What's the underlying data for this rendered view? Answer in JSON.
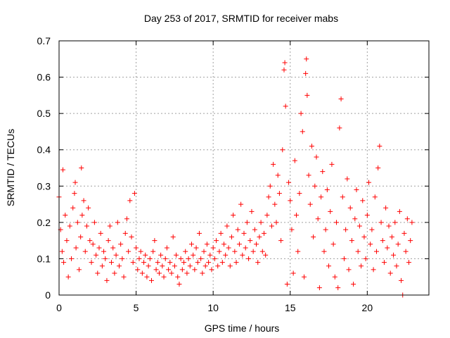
{
  "chart_data": {
    "type": "scatter",
    "title": "Day 253 of 2017, SRMTID for receiver mabs",
    "xlabel": "GPS time / hours",
    "ylabel": "SRMTID / TECUs",
    "xlim": [
      0,
      24
    ],
    "ylim": [
      0,
      0.7
    ],
    "x_ticks": [
      0,
      5,
      10,
      15,
      20
    ],
    "y_ticks": [
      0,
      0.1,
      0.2,
      0.3,
      0.4,
      0.5,
      0.6,
      0.7
    ],
    "x_tick_labels": [
      "0",
      "5",
      "10",
      "15",
      "20"
    ],
    "y_tick_labels": [
      "0",
      "0.1",
      "0.2",
      "0.3",
      "0.4",
      "0.5",
      "0.6",
      "0.7"
    ],
    "grid": true,
    "marker": "+",
    "color": "#ff0000",
    "series": [
      {
        "name": "SRMTID",
        "points": [
          [
            0.0,
            0.27
          ],
          [
            0.1,
            0.18
          ],
          [
            0.2,
            0.12
          ],
          [
            0.25,
            0.345
          ],
          [
            0.3,
            0.09
          ],
          [
            0.4,
            0.22
          ],
          [
            0.5,
            0.15
          ],
          [
            0.6,
            0.05
          ],
          [
            0.7,
            0.19
          ],
          [
            0.8,
            0.1
          ],
          [
            0.9,
            0.24
          ],
          [
            1.0,
            0.28
          ],
          [
            1.05,
            0.31
          ],
          [
            1.1,
            0.13
          ],
          [
            1.2,
            0.2
          ],
          [
            1.3,
            0.07
          ],
          [
            1.4,
            0.16
          ],
          [
            1.45,
            0.35
          ],
          [
            1.5,
            0.22
          ],
          [
            1.6,
            0.26
          ],
          [
            1.7,
            0.12
          ],
          [
            1.8,
            0.19
          ],
          [
            1.9,
            0.24
          ],
          [
            2.0,
            0.15
          ],
          [
            2.1,
            0.09
          ],
          [
            2.2,
            0.14
          ],
          [
            2.3,
            0.2
          ],
          [
            2.4,
            0.11
          ],
          [
            2.5,
            0.06
          ],
          [
            2.6,
            0.13
          ],
          [
            2.7,
            0.17
          ],
          [
            2.8,
            0.08
          ],
          [
            2.9,
            0.12
          ],
          [
            3.0,
            0.1
          ],
          [
            3.1,
            0.04
          ],
          [
            3.2,
            0.15
          ],
          [
            3.3,
            0.19
          ],
          [
            3.4,
            0.09
          ],
          [
            3.5,
            0.13
          ],
          [
            3.6,
            0.06
          ],
          [
            3.7,
            0.11
          ],
          [
            3.8,
            0.2
          ],
          [
            3.9,
            0.08
          ],
          [
            4.0,
            0.14
          ],
          [
            4.1,
            0.1
          ],
          [
            4.2,
            0.05
          ],
          [
            4.3,
            0.17
          ],
          [
            4.4,
            0.21
          ],
          [
            4.5,
            0.12
          ],
          [
            4.6,
            0.26
          ],
          [
            4.7,
            0.16
          ],
          [
            4.8,
            0.09
          ],
          [
            4.9,
            0.28
          ],
          [
            5.0,
            0.13
          ],
          [
            5.1,
            0.07
          ],
          [
            5.2,
            0.1
          ],
          [
            5.3,
            0.12
          ],
          [
            5.4,
            0.06
          ],
          [
            5.5,
            0.09
          ],
          [
            5.6,
            0.11
          ],
          [
            5.7,
            0.05
          ],
          [
            5.8,
            0.08
          ],
          [
            5.9,
            0.1
          ],
          [
            6.0,
            0.04
          ],
          [
            6.1,
            0.12
          ],
          [
            6.2,
            0.15
          ],
          [
            6.3,
            0.07
          ],
          [
            6.4,
            0.09
          ],
          [
            6.5,
            0.06
          ],
          [
            6.6,
            0.11
          ],
          [
            6.7,
            0.08
          ],
          [
            6.8,
            0.05
          ],
          [
            6.9,
            0.1
          ],
          [
            7.0,
            0.13
          ],
          [
            7.1,
            0.07
          ],
          [
            7.2,
            0.09
          ],
          [
            7.3,
            0.06
          ],
          [
            7.4,
            0.16
          ],
          [
            7.5,
            0.08
          ],
          [
            7.6,
            0.11
          ],
          [
            7.7,
            0.05
          ],
          [
            7.8,
            0.03
          ],
          [
            7.9,
            0.1
          ],
          [
            8.0,
            0.07
          ],
          [
            8.1,
            0.09
          ],
          [
            8.2,
            0.12
          ],
          [
            8.3,
            0.06
          ],
          [
            8.4,
            0.1
          ],
          [
            8.5,
            0.08
          ],
          [
            8.6,
            0.14
          ],
          [
            8.7,
            0.11
          ],
          [
            8.8,
            0.07
          ],
          [
            8.9,
            0.13
          ],
          [
            9.0,
            0.09
          ],
          [
            9.1,
            0.17
          ],
          [
            9.2,
            0.1
          ],
          [
            9.3,
            0.06
          ],
          [
            9.4,
            0.12
          ],
          [
            9.5,
            0.08
          ],
          [
            9.6,
            0.14
          ],
          [
            9.7,
            0.09
          ],
          [
            9.8,
            0.11
          ],
          [
            9.9,
            0.07
          ],
          [
            10.0,
            0.13
          ],
          [
            10.1,
            0.1
          ],
          [
            10.2,
            0.15
          ],
          [
            10.3,
            0.08
          ],
          [
            10.4,
            0.12
          ],
          [
            10.5,
            0.17
          ],
          [
            10.6,
            0.09
          ],
          [
            10.7,
            0.14
          ],
          [
            10.8,
            0.11
          ],
          [
            10.9,
            0.19
          ],
          [
            11.0,
            0.13
          ],
          [
            11.1,
            0.08
          ],
          [
            11.2,
            0.16
          ],
          [
            11.3,
            0.22
          ],
          [
            11.4,
            0.12
          ],
          [
            11.5,
            0.09
          ],
          [
            11.6,
            0.18
          ],
          [
            11.7,
            0.14
          ],
          [
            11.8,
            0.25
          ],
          [
            11.9,
            0.11
          ],
          [
            12.0,
            0.17
          ],
          [
            12.1,
            0.13
          ],
          [
            12.2,
            0.2
          ],
          [
            12.3,
            0.1
          ],
          [
            12.4,
            0.15
          ],
          [
            12.5,
            0.23
          ],
          [
            12.6,
            0.12
          ],
          [
            12.7,
            0.18
          ],
          [
            12.8,
            0.14
          ],
          [
            12.9,
            0.09
          ],
          [
            13.0,
            0.16
          ],
          [
            13.1,
            0.2
          ],
          [
            13.2,
            0.12
          ],
          [
            13.3,
            0.17
          ],
          [
            13.4,
            0.11
          ],
          [
            13.5,
            0.22
          ],
          [
            13.6,
            0.27
          ],
          [
            13.7,
            0.3
          ],
          [
            13.8,
            0.19
          ],
          [
            13.9,
            0.36
          ],
          [
            14.0,
            0.25
          ],
          [
            14.1,
            0.2
          ],
          [
            14.2,
            0.33
          ],
          [
            14.3,
            0.28
          ],
          [
            14.4,
            0.15
          ],
          [
            14.5,
            0.4
          ],
          [
            14.6,
            0.62
          ],
          [
            14.65,
            0.64
          ],
          [
            14.7,
            0.52
          ],
          [
            14.8,
            0.03
          ],
          [
            14.9,
            0.31
          ],
          [
            15.0,
            0.26
          ],
          [
            15.1,
            0.18
          ],
          [
            15.2,
            0.06
          ],
          [
            15.3,
            0.37
          ],
          [
            15.4,
            0.22
          ],
          [
            15.5,
            0.12
          ],
          [
            15.6,
            0.28
          ],
          [
            15.7,
            0.5
          ],
          [
            15.8,
            0.45
          ],
          [
            15.9,
            0.05
          ],
          [
            16.0,
            0.61
          ],
          [
            16.05,
            0.65
          ],
          [
            16.1,
            0.55
          ],
          [
            16.2,
            0.33
          ],
          [
            16.3,
            0.25
          ],
          [
            16.4,
            0.41
          ],
          [
            16.5,
            0.16
          ],
          [
            16.6,
            0.3
          ],
          [
            16.7,
            0.38
          ],
          [
            16.8,
            0.21
          ],
          [
            16.9,
            0.02
          ],
          [
            17.0,
            0.27
          ],
          [
            17.1,
            0.34
          ],
          [
            17.2,
            0.12
          ],
          [
            17.3,
            0.18
          ],
          [
            17.4,
            0.29
          ],
          [
            17.5,
            0.08
          ],
          [
            17.6,
            0.23
          ],
          [
            17.7,
            0.36
          ],
          [
            17.8,
            0.14
          ],
          [
            17.9,
            0.05
          ],
          [
            18.0,
            0.2
          ],
          [
            18.1,
            0.02
          ],
          [
            18.2,
            0.46
          ],
          [
            18.3,
            0.54
          ],
          [
            18.4,
            0.27
          ],
          [
            18.5,
            0.1
          ],
          [
            18.6,
            0.18
          ],
          [
            18.7,
            0.32
          ],
          [
            18.8,
            0.07
          ],
          [
            18.9,
            0.24
          ],
          [
            19.0,
            0.15
          ],
          [
            19.1,
            0.03
          ],
          [
            19.2,
            0.21
          ],
          [
            19.3,
            0.29
          ],
          [
            19.4,
            0.12
          ],
          [
            19.5,
            0.19
          ],
          [
            19.6,
            0.08
          ],
          [
            19.7,
            0.26
          ],
          [
            19.8,
            0.16
          ],
          [
            19.9,
            0.1
          ],
          [
            20.0,
            0.22
          ],
          [
            20.1,
            0.31
          ],
          [
            20.2,
            0.14
          ],
          [
            20.3,
            0.18
          ],
          [
            20.4,
            0.07
          ],
          [
            20.5,
            0.27
          ],
          [
            20.6,
            0.12
          ],
          [
            20.7,
            0.35
          ],
          [
            20.8,
            0.41
          ],
          [
            20.9,
            0.2
          ],
          [
            21.0,
            0.15
          ],
          [
            21.1,
            0.09
          ],
          [
            21.2,
            0.24
          ],
          [
            21.3,
            0.13
          ],
          [
            21.4,
            0.19
          ],
          [
            21.5,
            0.06
          ],
          [
            21.6,
            0.16
          ],
          [
            21.7,
            0.11
          ],
          [
            21.8,
            0.2
          ],
          [
            21.9,
            0.08
          ],
          [
            22.0,
            0.14
          ],
          [
            22.1,
            0.23
          ],
          [
            22.2,
            0.04
          ],
          [
            22.3,
            0.0
          ],
          [
            22.4,
            0.17
          ],
          [
            22.5,
            0.12
          ],
          [
            22.6,
            0.21
          ],
          [
            22.7,
            0.09
          ],
          [
            22.8,
            0.15
          ],
          [
            22.9,
            0.2
          ]
        ]
      }
    ]
  }
}
